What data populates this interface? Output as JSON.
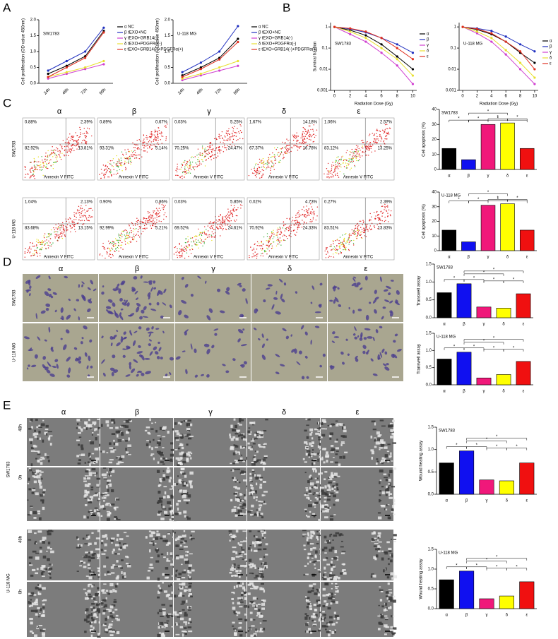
{
  "panels": [
    "A",
    "B",
    "C",
    "D",
    "E"
  ],
  "chart_data": [
    {
      "type": "line",
      "annotation": "SW1783",
      "ylabel": "Cell proliferation (OD value 450nm)",
      "categories": [
        "24h",
        "48h",
        "72h",
        "96h"
      ],
      "ylim": [
        0,
        2
      ],
      "yticks": [
        {
          "value": 0,
          "label": "0.0"
        },
        0.5,
        {
          "value": 1,
          "label": "1.0"
        },
        1.5,
        {
          "value": 2,
          "label": "2.0"
        }
      ],
      "series": [
        {
          "name": "α NC",
          "color": "#000000",
          "values": [
            0.3,
            0.55,
            0.85,
            1.65
          ]
        },
        {
          "name": "β tEXO+NC",
          "color": "#1f2fbf",
          "values": [
            0.4,
            0.7,
            1.0,
            1.75
          ]
        },
        {
          "name": "γ tEXO+GRB14(-)",
          "color": "#d040d0",
          "values": [
            0.15,
            0.3,
            0.45,
            0.6
          ]
        },
        {
          "name": "δ tEXO+PDGFRα(-)",
          "color": "#e8e030",
          "values": [
            0.2,
            0.35,
            0.5,
            0.7
          ]
        },
        {
          "name": "ε tEXO+GRB14(-)+PDGFRα(+)",
          "color": "#e03020",
          "values": [
            0.2,
            0.5,
            0.8,
            1.6
          ]
        }
      ]
    },
    {
      "type": "line",
      "annotation": "U-118 MG",
      "ylabel": "Cell proliferation (OD value 450nm)",
      "categories": [
        "24h",
        "48h",
        "72h",
        "96h"
      ],
      "ylim": [
        0,
        2
      ],
      "yticks": [
        {
          "value": 0,
          "label": "0.0"
        },
        0.5,
        {
          "value": 1,
          "label": "1.0"
        },
        1.5,
        {
          "value": 2,
          "label": "2.0"
        }
      ],
      "series": [
        {
          "name": "α NC",
          "color": "#000000",
          "values": [
            0.25,
            0.5,
            0.8,
            1.4
          ]
        },
        {
          "name": "β tEXO+NC",
          "color": "#1f2fbf",
          "values": [
            0.35,
            0.65,
            1.0,
            1.8
          ]
        },
        {
          "name": "γ tEXO+GRB14(-)",
          "color": "#d040d0",
          "values": [
            0.1,
            0.25,
            0.4,
            0.55
          ]
        },
        {
          "name": "δ tEXO+PDGFRα(-)",
          "color": "#e8e030",
          "values": [
            0.15,
            0.3,
            0.5,
            0.7
          ]
        },
        {
          "name": "ε tEXO+GRB14(-)+PDGFRα(+)",
          "color": "#e03020",
          "values": [
            0.2,
            0.45,
            0.75,
            1.3
          ]
        }
      ]
    },
    {
      "type": "line",
      "log": true,
      "annotation": "SW1783",
      "ylabel": "Survival fraction",
      "xlabel": "Radiation Dose (Gy)",
      "x": [
        0,
        2,
        4,
        6,
        8,
        10
      ],
      "xlim": [
        -0.5,
        10.5
      ],
      "xticks": [
        0,
        2,
        4,
        6,
        8,
        10
      ],
      "ylim": [
        0.001,
        1.6
      ],
      "yticks": [
        0.001,
        0.01,
        0.1,
        1
      ],
      "series": [
        {
          "name": "α",
          "color": "#000000",
          "values": [
            1,
            0.7,
            0.4,
            0.15,
            0.04,
            0.01
          ]
        },
        {
          "name": "β",
          "color": "#1f2fbf",
          "values": [
            1,
            0.8,
            0.55,
            0.3,
            0.15,
            0.06
          ]
        },
        {
          "name": "γ",
          "color": "#d040d0",
          "values": [
            1,
            0.45,
            0.2,
            0.06,
            0.015,
            0.002
          ]
        },
        {
          "name": "δ",
          "color": "#e8e030",
          "values": [
            1,
            0.6,
            0.3,
            0.1,
            0.03,
            0.005
          ]
        },
        {
          "name": "ε",
          "color": "#e03020",
          "values": [
            1,
            0.85,
            0.6,
            0.3,
            0.1,
            0.03
          ]
        }
      ]
    },
    {
      "type": "line",
      "log": true,
      "annotation": "U-118 MG",
      "xlabel": "Radiation Dose (Gy)",
      "x": [
        0,
        2,
        4,
        6,
        8,
        10
      ],
      "xlim": [
        -0.5,
        10.5
      ],
      "xticks": [
        0,
        2,
        4,
        6,
        8,
        10
      ],
      "ylim": [
        0.001,
        1.6
      ],
      "yticks": [
        0.001,
        0.01,
        0.1,
        1
      ],
      "series": [
        {
          "name": "α",
          "color": "#000000",
          "values": [
            1,
            0.75,
            0.45,
            0.2,
            0.06,
            0.02
          ]
        },
        {
          "name": "β",
          "color": "#1f2fbf",
          "values": [
            1,
            0.85,
            0.65,
            0.35,
            0.15,
            0.07
          ]
        },
        {
          "name": "γ",
          "color": "#d040d0",
          "values": [
            1,
            0.5,
            0.2,
            0.05,
            0.01,
            0.002
          ]
        },
        {
          "name": "δ",
          "color": "#e8e030",
          "values": [
            1,
            0.6,
            0.3,
            0.08,
            0.02,
            0.004
          ]
        },
        {
          "name": "ε",
          "color": "#e03020",
          "values": [
            1,
            0.8,
            0.5,
            0.2,
            0.07,
            0.01
          ]
        }
      ]
    },
    {
      "type": "bar",
      "annotation": "SW1783",
      "ylabel": "Cell apoptosis (%)",
      "categories": [
        "α",
        "β",
        "γ",
        "δ",
        "ε"
      ],
      "values": [
        14,
        6.5,
        30,
        31,
        14
      ],
      "colors": [
        "#000000",
        "#1010f0",
        "#f0187a",
        "#ffff00",
        "#f01010"
      ],
      "ylim": [
        0,
        40
      ],
      "yticks": [
        0,
        10,
        20,
        30,
        40
      ],
      "significance": [
        "*",
        "*",
        "*",
        "*",
        "*",
        "*"
      ]
    },
    {
      "type": "bar",
      "annotation": "U-118 MG",
      "ylabel": "Cell apoptosis (%)",
      "categories": [
        "α",
        "β",
        "γ",
        "δ",
        "ε"
      ],
      "values": [
        14,
        6,
        31,
        32,
        14
      ],
      "colors": [
        "#000000",
        "#1010f0",
        "#f0187a",
        "#ffff00",
        "#f01010"
      ],
      "ylim": [
        0,
        40
      ],
      "yticks": [
        0,
        10,
        20,
        30,
        40
      ],
      "significance": [
        "*",
        "*",
        "*",
        "*",
        "*",
        "*"
      ]
    },
    {
      "type": "bar",
      "annotation": "SW1783",
      "ylabel": "Transwell assay",
      "categories": [
        "α",
        "β",
        "γ",
        "δ",
        "ε"
      ],
      "values": [
        0.7,
        0.95,
        0.3,
        0.27,
        0.67
      ],
      "colors": [
        "#000000",
        "#1010f0",
        "#f0187a",
        "#ffff00",
        "#f01010"
      ],
      "ylim": [
        0,
        1.5
      ],
      "yticks": [
        {
          "value": 0,
          "label": "0.0"
        },
        0.5,
        {
          "value": 1,
          "label": "1.0"
        },
        1.5
      ],
      "significance": [
        "*",
        "*",
        "*",
        "*",
        "*",
        "*"
      ]
    },
    {
      "type": "bar",
      "annotation": "U-118 MG",
      "ylabel": "Transwell assay",
      "categories": [
        "α",
        "β",
        "γ",
        "δ",
        "ε"
      ],
      "values": [
        0.75,
        0.95,
        0.2,
        0.3,
        0.68
      ],
      "colors": [
        "#000000",
        "#1010f0",
        "#f0187a",
        "#ffff00",
        "#f01010"
      ],
      "ylim": [
        0,
        1.5
      ],
      "yticks": [
        {
          "value": 0,
          "label": "0.0"
        },
        0.5,
        {
          "value": 1,
          "label": "1.0"
        },
        1.5
      ],
      "significance": [
        "*",
        "*",
        "*",
        "*",
        "*",
        "*"
      ]
    },
    {
      "type": "bar",
      "annotation": "SW1783",
      "ylabel": "Wound healing assay",
      "categories": [
        "α",
        "β",
        "γ",
        "δ",
        "ε"
      ],
      "values": [
        0.7,
        0.97,
        0.32,
        0.3,
        0.7
      ],
      "colors": [
        "#000000",
        "#1010f0",
        "#f0187a",
        "#ffff00",
        "#f01010"
      ],
      "ylim": [
        0,
        1.5
      ],
      "yticks": [
        {
          "value": 0,
          "label": "0.0"
        },
        0.5,
        {
          "value": 1,
          "label": "1.0"
        },
        1.5
      ],
      "significance": [
        "*",
        "*",
        "*",
        "*",
        "*",
        "*"
      ]
    },
    {
      "type": "bar",
      "annotation": "U-118 MG",
      "ylabel": "Wound healing assay",
      "categories": [
        "α",
        "β",
        "γ",
        "δ",
        "ε"
      ],
      "values": [
        0.73,
        0.95,
        0.25,
        0.32,
        0.68
      ],
      "colors": [
        "#000000",
        "#1010f0",
        "#f0187a",
        "#ffff00",
        "#f01010"
      ],
      "ylim": [
        0,
        1.5
      ],
      "yticks": [
        {
          "value": 0,
          "label": "0.0"
        },
        0.5,
        {
          "value": 1,
          "label": "1.0"
        },
        1.5
      ],
      "significance": [
        "*",
        "*",
        "*",
        "*",
        "*",
        "*"
      ]
    }
  ],
  "flow": {
    "columns": [
      "α",
      "β",
      "γ",
      "δ",
      "ε"
    ],
    "xlabel": "Annexin V FITC",
    "rows": [
      {
        "name": "SW1783",
        "quadrants": [
          [
            "0.88%",
            "2.39%",
            "82.92%",
            "13.81%"
          ],
          [
            "0.89%",
            "0.67%",
            "93.31%",
            "5.14%"
          ],
          [
            "0.03%",
            "5.25%",
            "70.25%",
            "24.47%"
          ],
          [
            "1.67%",
            "14.18%",
            "67.37%",
            "16.78%"
          ],
          [
            "1.06%",
            "2.57%",
            "83.12%",
            "13.25%"
          ]
        ]
      },
      {
        "name": "U-118 MG",
        "quadrants": [
          [
            "1.04%",
            "2.13%",
            "83.68%",
            "13.15%"
          ],
          [
            "0.90%",
            "0.86%",
            "92.99%",
            "5.21%"
          ],
          [
            "0.03%",
            "5.85%",
            "69.52%",
            "24.61%"
          ],
          [
            "0.02%",
            "4.73%",
            "70.92%",
            "24.33%"
          ],
          [
            "0.27%",
            "2.39%",
            "83.51%",
            "13.83%"
          ]
        ]
      }
    ]
  },
  "transwell": {
    "columns": [
      "α",
      "β",
      "γ",
      "δ",
      "ε"
    ],
    "rows": [
      "SW1783",
      "U-118 MG"
    ]
  },
  "wound": {
    "columns": [
      "α",
      "β",
      "γ",
      "δ",
      "ε"
    ],
    "rows": [
      "SW1783",
      "U-118 MG"
    ],
    "times": [
      "48h",
      "0h"
    ]
  }
}
